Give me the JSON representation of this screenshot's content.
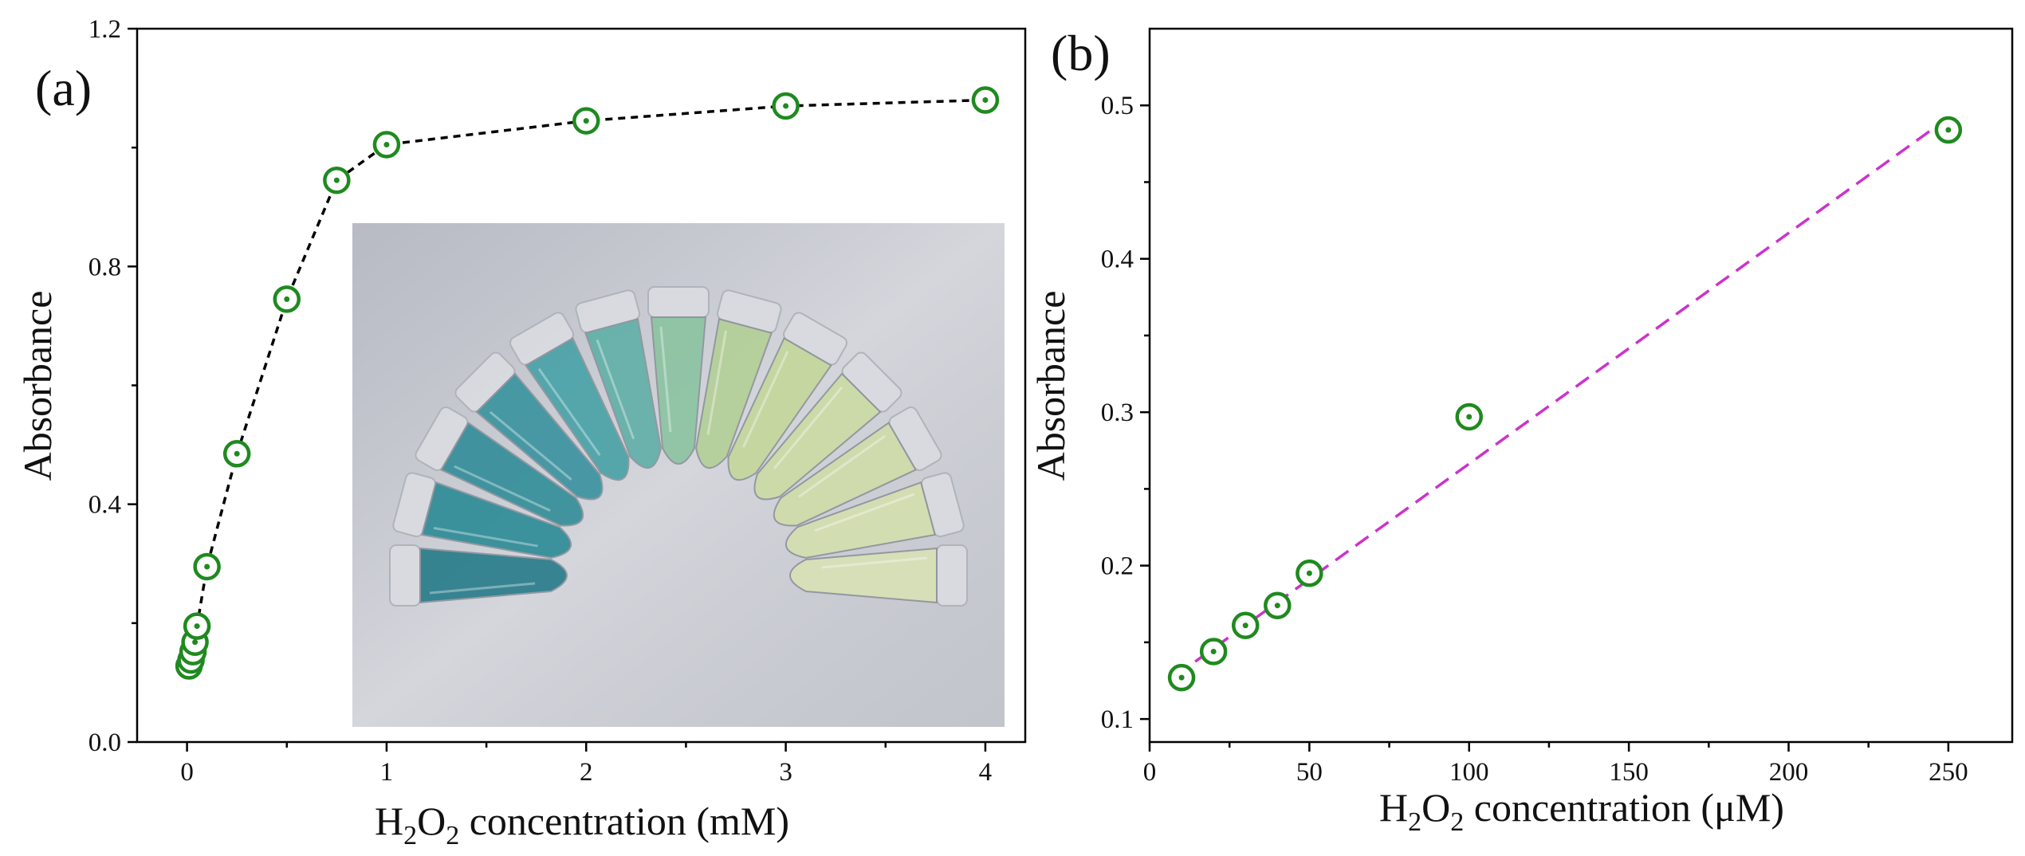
{
  "chart_data": [
    {
      "panel_label": "(a)",
      "type": "line",
      "xlabel": "H2O2 concentration (mM)",
      "xlabel_parts": {
        "pre": "H",
        "sub1": "2",
        "mid": "O",
        "sub2": "2",
        "post": " concentration (mM)"
      },
      "ylabel": "Absorbance",
      "xlim": [
        -0.25,
        4.2
      ],
      "ylim": [
        0.0,
        1.2
      ],
      "xticks": [
        0,
        1,
        2,
        3,
        4
      ],
      "xtick_labels": [
        "0",
        "1",
        "2",
        "3",
        "4"
      ],
      "yticks": [
        0.0,
        0.4,
        0.8,
        1.2
      ],
      "ytick_labels": [
        "0.0",
        "0.4",
        "0.8",
        "1.2"
      ],
      "grid": false,
      "line_style": "dashed",
      "line_color": "#000000",
      "marker_color": "#1f8a1f",
      "series": [
        {
          "name": "Absorbance",
          "x": [
            0.01,
            0.02,
            0.03,
            0.04,
            0.05,
            0.1,
            0.25,
            0.5,
            0.75,
            1,
            2,
            3,
            4
          ],
          "y": [
            0.128,
            0.138,
            0.152,
            0.168,
            0.195,
            0.295,
            0.485,
            0.745,
            0.945,
            1.005,
            1.045,
            1.07,
            1.08
          ]
        }
      ],
      "inset": {
        "description": "photo",
        "tube_colors": [
          "#2a7d8b",
          "#2f8c97",
          "#358f9a",
          "#3c94a0",
          "#4aa3a8",
          "#62b0a8",
          "#8cc4a2",
          "#b3cf98",
          "#c4d79d",
          "#cbdba4",
          "#d0dcaa",
          "#d4dfb0",
          "#d8e1b6"
        ]
      }
    },
    {
      "panel_label": "(b)",
      "type": "scatter",
      "xlabel": "H2O2 concentration (μM)",
      "xlabel_parts": {
        "pre": "H",
        "sub1": "2",
        "mid": "O",
        "sub2": "2",
        "post": " concentration (μM)"
      },
      "ylabel": "Absorbance",
      "xlim": [
        0,
        270
      ],
      "ylim": [
        0.085,
        0.55
      ],
      "xticks": [
        0,
        50,
        100,
        150,
        200,
        250
      ],
      "xtick_labels": [
        "0",
        "50",
        "100",
        "150",
        "200",
        "250"
      ],
      "yticks": [
        0.1,
        0.2,
        0.3,
        0.4,
        0.5
      ],
      "ytick_labels": [
        "0.1",
        "0.2",
        "0.3",
        "0.4",
        "0.5"
      ],
      "grid": false,
      "marker_color": "#1f8a1f",
      "series": [
        {
          "name": "Absorbance",
          "x": [
            10,
            20,
            30,
            40,
            50,
            100,
            250
          ],
          "y": [
            0.127,
            0.144,
            0.161,
            0.174,
            0.195,
            0.297,
            0.484
          ]
        }
      ],
      "fit_line": {
        "x": [
          8,
          250
        ],
        "y": [
          0.128,
          0.492
        ],
        "color": "#cc33cc",
        "style": "dashed"
      }
    }
  ]
}
